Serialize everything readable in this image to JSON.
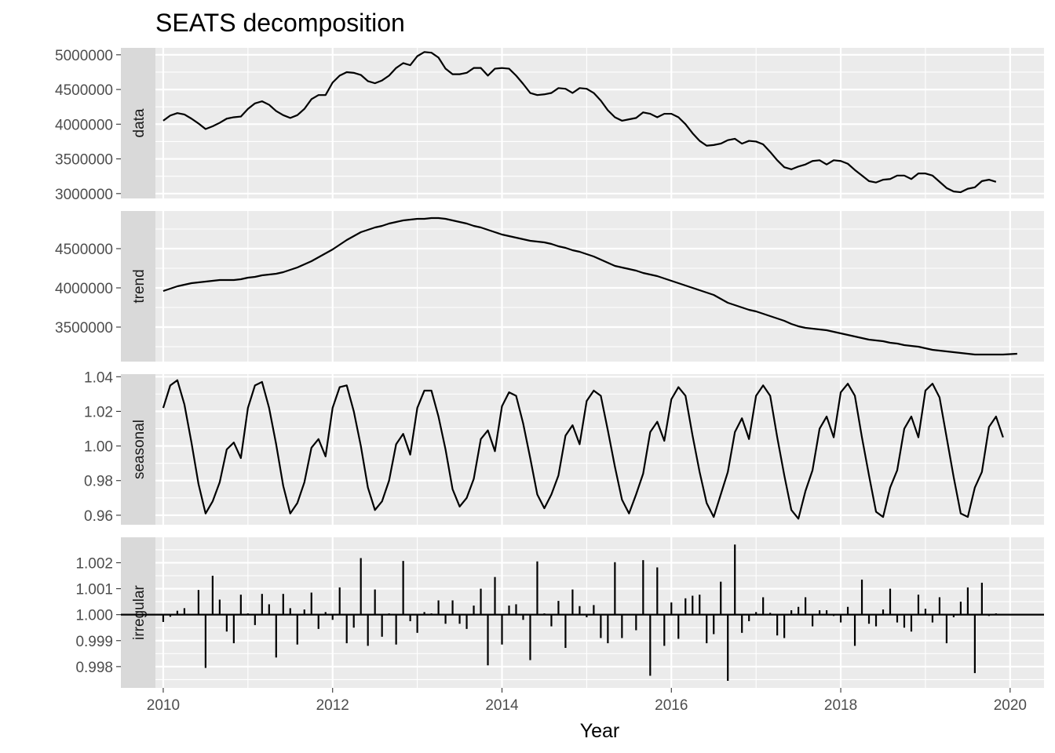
{
  "chart_data": {
    "type": "line",
    "title": "SEATS decomposition",
    "xlabel": "Year",
    "x_start": 2010,
    "frequency": 12,
    "xlim": [
      2009.5,
      2020.4
    ],
    "x_breaks": [
      2010,
      2012,
      2014,
      2016,
      2018,
      2020
    ],
    "x_tick_labels": [
      "2010",
      "2012",
      "2014",
      "2016",
      "2018",
      "2020"
    ],
    "grid": true,
    "panels": [
      {
        "name": "data",
        "ylim": [
          2930000,
          5100000
        ],
        "y_breaks": [
          3000000,
          3500000,
          4000000,
          4500000,
          5000000
        ],
        "y_tick_labels": [
          "3000000",
          "3500000",
          "4000000",
          "4500000",
          "5000000"
        ],
        "geom": "line",
        "values": [
          4050000,
          4125000,
          4160000,
          4140000,
          4080000,
          4010000,
          3930000,
          3970000,
          4020000,
          4080000,
          4100000,
          4110000,
          4220000,
          4300000,
          4330000,
          4280000,
          4190000,
          4130000,
          4090000,
          4130000,
          4220000,
          4360000,
          4420000,
          4420000,
          4600000,
          4700000,
          4750000,
          4740000,
          4710000,
          4620000,
          4590000,
          4630000,
          4700000,
          4810000,
          4880000,
          4850000,
          4980000,
          5040000,
          5030000,
          4960000,
          4800000,
          4720000,
          4720000,
          4740000,
          4810000,
          4810000,
          4700000,
          4800000,
          4810000,
          4800000,
          4700000,
          4580000,
          4450000,
          4420000,
          4430000,
          4450000,
          4520000,
          4510000,
          4450000,
          4520000,
          4510000,
          4450000,
          4340000,
          4200000,
          4100000,
          4050000,
          4070000,
          4090000,
          4170000,
          4150000,
          4100000,
          4150000,
          4150000,
          4100000,
          4000000,
          3870000,
          3760000,
          3690000,
          3700000,
          3720000,
          3770000,
          3790000,
          3720000,
          3760000,
          3750000,
          3710000,
          3600000,
          3480000,
          3380000,
          3350000,
          3390000,
          3420000,
          3470000,
          3480000,
          3420000,
          3480000,
          3470000,
          3430000,
          3340000,
          3260000,
          3180000,
          3160000,
          3200000,
          3210000,
          3260000,
          3260000,
          3210000,
          3290000,
          3290000,
          3260000,
          3170000,
          3080000,
          3030000,
          3020000,
          3070000,
          3090000,
          3180000,
          3200000,
          3170000
        ]
      },
      {
        "name": "trend",
        "ylim": [
          3060000,
          4980000
        ],
        "y_breaks": [
          3500000,
          4000000,
          4500000
        ],
        "y_tick_labels": [
          "3500000",
          "4000000",
          "4500000"
        ],
        "geom": "line",
        "values": [
          3960000,
          3990000,
          4020000,
          4040000,
          4060000,
          4070000,
          4080000,
          4090000,
          4100000,
          4100000,
          4100000,
          4110000,
          4130000,
          4140000,
          4160000,
          4170000,
          4180000,
          4200000,
          4230000,
          4260000,
          4300000,
          4340000,
          4390000,
          4440000,
          4490000,
          4550000,
          4610000,
          4660000,
          4710000,
          4740000,
          4770000,
          4790000,
          4820000,
          4840000,
          4860000,
          4870000,
          4880000,
          4880000,
          4890000,
          4890000,
          4880000,
          4860000,
          4840000,
          4820000,
          4790000,
          4770000,
          4740000,
          4710000,
          4680000,
          4660000,
          4640000,
          4620000,
          4600000,
          4590000,
          4580000,
          4560000,
          4530000,
          4510000,
          4480000,
          4460000,
          4430000,
          4400000,
          4360000,
          4320000,
          4280000,
          4260000,
          4240000,
          4220000,
          4190000,
          4170000,
          4150000,
          4120000,
          4090000,
          4060000,
          4030000,
          4000000,
          3970000,
          3940000,
          3910000,
          3860000,
          3810000,
          3780000,
          3750000,
          3720000,
          3700000,
          3670000,
          3640000,
          3610000,
          3580000,
          3540000,
          3510000,
          3490000,
          3480000,
          3470000,
          3460000,
          3440000,
          3420000,
          3400000,
          3380000,
          3360000,
          3340000,
          3330000,
          3320000,
          3300000,
          3290000,
          3270000,
          3260000,
          3250000,
          3230000,
          3210000,
          3200000,
          3190000,
          3180000,
          3170000,
          3160000,
          3150000,
          3150000,
          3150000,
          3150000,
          3150000,
          3155000,
          3160000
        ]
      },
      {
        "name": "seasonal",
        "ylim": [
          0.9545,
          1.0415
        ],
        "y_breaks": [
          0.96,
          0.98,
          1.0,
          1.02,
          1.04
        ],
        "y_tick_labels": [
          "0.96",
          "0.98",
          "1.00",
          "1.02",
          "1.04"
        ],
        "geom": "line",
        "values": [
          1.022,
          1.035,
          1.038,
          1.024,
          1.002,
          0.978,
          0.961,
          0.968,
          0.979,
          0.998,
          1.002,
          0.993,
          1.022,
          1.035,
          1.037,
          1.022,
          1.001,
          0.977,
          0.961,
          0.967,
          0.979,
          0.999,
          1.004,
          0.994,
          1.022,
          1.034,
          1.035,
          1.02,
          1.0,
          0.976,
          0.963,
          0.968,
          0.98,
          1.001,
          1.007,
          0.995,
          1.022,
          1.032,
          1.032,
          1.017,
          0.998,
          0.975,
          0.965,
          0.97,
          0.981,
          1.004,
          1.009,
          0.997,
          1.023,
          1.031,
          1.029,
          1.013,
          0.993,
          0.972,
          0.964,
          0.972,
          0.983,
          1.006,
          1.012,
          1.001,
          1.026,
          1.032,
          1.029,
          1.009,
          0.988,
          0.969,
          0.961,
          0.972,
          0.984,
          1.008,
          1.014,
          1.003,
          1.027,
          1.034,
          1.029,
          1.006,
          0.985,
          0.967,
          0.959,
          0.972,
          0.985,
          1.008,
          1.016,
          1.004,
          1.029,
          1.035,
          1.029,
          1.005,
          0.983,
          0.963,
          0.958,
          0.974,
          0.986,
          1.01,
          1.017,
          1.005,
          1.031,
          1.036,
          1.029,
          1.005,
          0.983,
          0.962,
          0.959,
          0.976,
          0.986,
          1.01,
          1.017,
          1.005,
          1.032,
          1.036,
          1.028,
          1.005,
          0.982,
          0.961,
          0.959,
          0.976,
          0.985,
          1.011,
          1.017,
          1.005
        ]
      },
      {
        "name": "irregular",
        "ylim": [
          0.99718,
          1.00298
        ],
        "y_breaks": [
          0.998,
          0.999,
          1.0,
          1.001,
          1.002
        ],
        "y_tick_labels": [
          "0.998",
          "0.999",
          "1.000",
          "1.001",
          "1.002"
        ],
        "geom": "spike",
        "baseline": 1.0,
        "values": [
          0.99972,
          0.99992,
          1.00015,
          1.00025,
          1.00003,
          1.00095,
          0.99795,
          1.0015,
          1.00058,
          0.99935,
          0.9989,
          1.00077,
          1.00005,
          0.9996,
          1.0008,
          1.0004,
          0.99835,
          1.0008,
          1.00025,
          0.99885,
          1.0002,
          1.00085,
          0.99945,
          1.0001,
          0.9998,
          1.00105,
          0.9989,
          0.9995,
          1.00218,
          0.9988,
          1.00097,
          0.99915,
          1.00005,
          0.99885,
          1.00207,
          0.99975,
          0.9993,
          1.0001,
          1.00005,
          1.00055,
          0.99965,
          1.00055,
          0.99965,
          0.99945,
          1.00035,
          1.001,
          0.99805,
          1.00145,
          0.99885,
          1.00035,
          1.0004,
          0.9998,
          0.99825,
          1.00205,
          1.00005,
          0.99955,
          1.00053,
          0.99872,
          1.00097,
          1.00033,
          0.9999,
          1.00037,
          0.9991,
          0.9989,
          1.00202,
          0.9991,
          1.0,
          0.9994,
          1.0021,
          0.99765,
          1.00182,
          0.9988,
          1.00047,
          0.99907,
          1.00063,
          1.00073,
          1.00077,
          0.9989,
          0.99925,
          1.00127,
          0.99745,
          1.0027,
          0.9993,
          0.99975,
          1.0001,
          1.00067,
          1.00007,
          0.9992,
          0.9991,
          1.00017,
          1.0003,
          1.00067,
          0.99955,
          1.00017,
          1.00017,
          0.99995,
          0.9997,
          1.0003,
          0.9988,
          1.00135,
          0.99965,
          0.99955,
          1.0002,
          1.001,
          0.9997,
          0.9995,
          0.99935,
          1.00077,
          1.00023,
          0.9997,
          1.00067,
          0.9989,
          0.9999,
          1.0005,
          1.00105,
          0.99775,
          1.00123,
          0.99995,
          1.00005,
          1.00003
        ]
      }
    ]
  }
}
